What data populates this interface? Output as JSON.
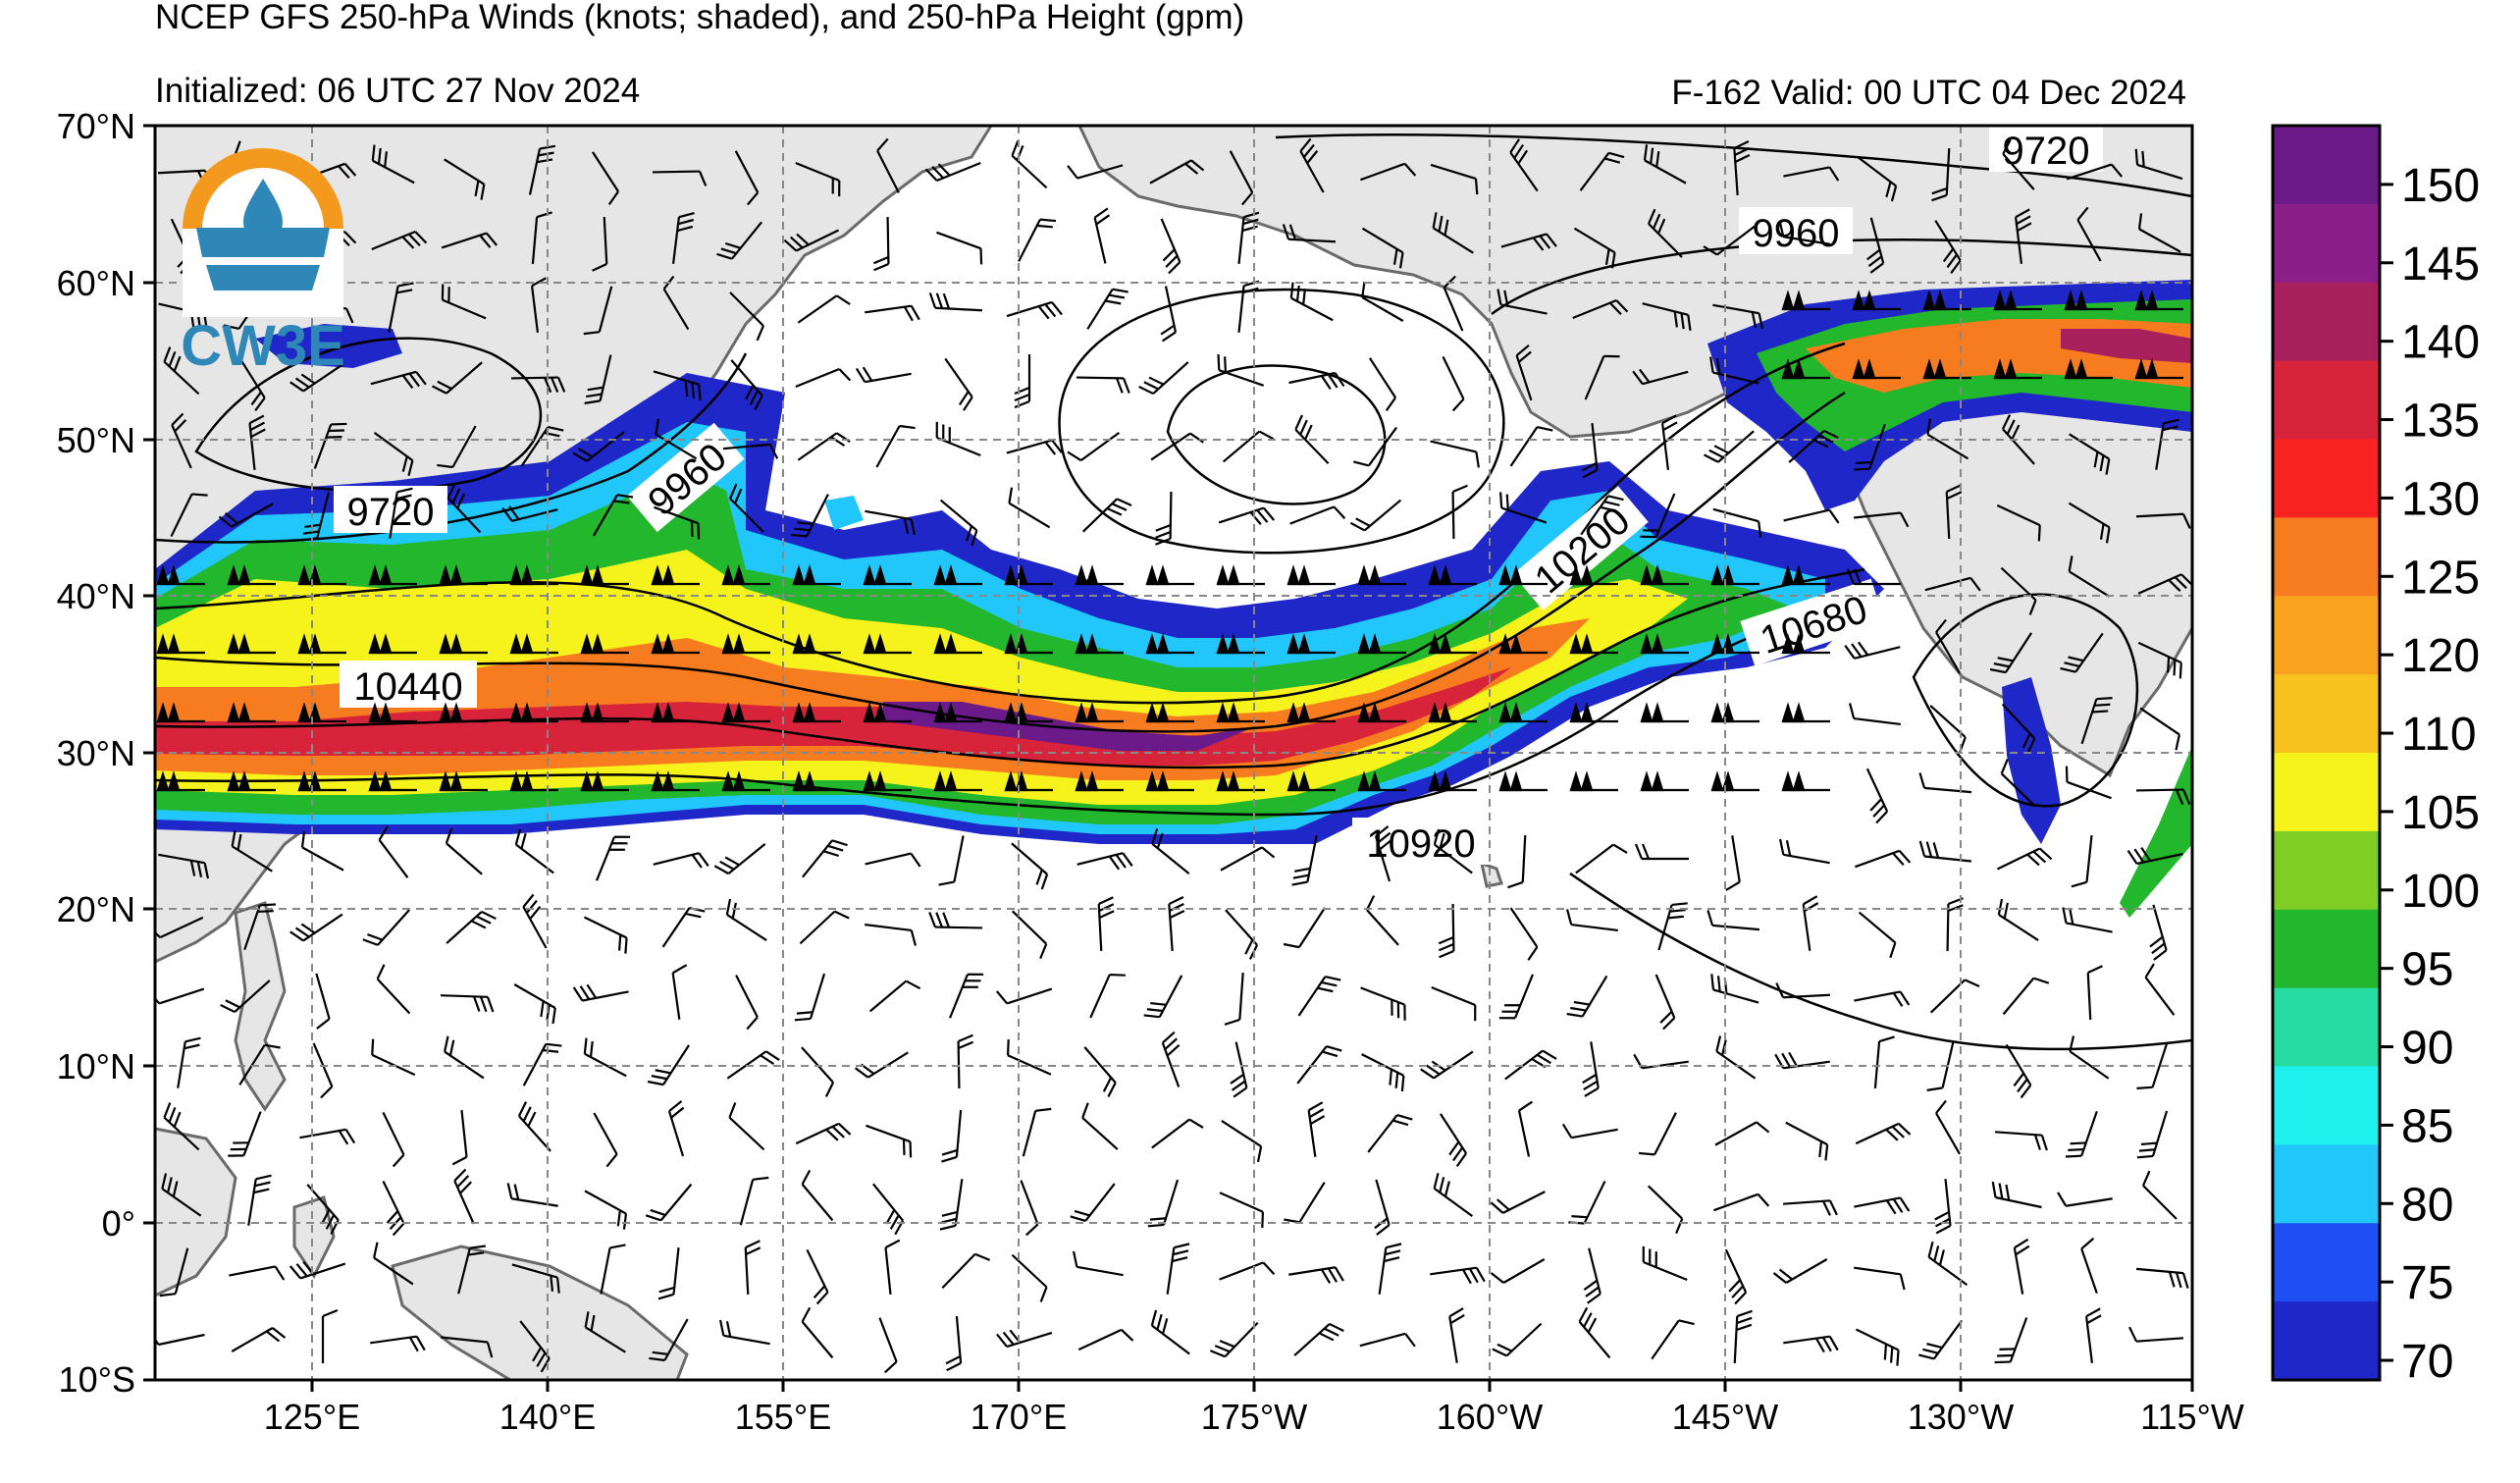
{
  "header": {
    "title": "NCEP GFS 250-hPa Winds (knots; shaded), and 250-hPa Height (gpm)",
    "initialized": "Initialized: 06 UTC 27 Nov 2024",
    "valid": "F-162  Valid: 00 UTC 04 Dec 2024"
  },
  "logo": {
    "text": "CW3E",
    "colors": {
      "orange": "#f39a1e",
      "blue": "#2f87b8"
    }
  },
  "map": {
    "lat_labels": [
      "70°N",
      "60°N",
      "50°N",
      "40°N",
      "30°N",
      "20°N",
      "10°N",
      "0°",
      "10°S"
    ],
    "lon_labels": [
      "125°E",
      "140°E",
      "155°E",
      "170°E",
      "175°W",
      "160°W",
      "145°W",
      "130°W",
      "115°W"
    ],
    "lat_range": [
      -10,
      70
    ],
    "lon_range": [
      110,
      245
    ],
    "gridlines": "dashed",
    "land_color": "#e6e6e6",
    "contour_labels": [
      "9720",
      "9960",
      "9720",
      "9960",
      "10200",
      "10440",
      "10680",
      "10920"
    ]
  },
  "colorbar": {
    "labels": [
      "150",
      "145",
      "140",
      "135",
      "130",
      "125",
      "120",
      "110",
      "105",
      "100",
      "95",
      "90",
      "85",
      "80",
      "75",
      "70"
    ],
    "colors": [
      "#6b1a8a",
      "#8a1f8a",
      "#a8205c",
      "#d8243a",
      "#f82222",
      "#f77b1f",
      "#f9a21e",
      "#f7c21d",
      "#f5f21c",
      "#7ece25",
      "#22b72c",
      "#27dca2",
      "#1ff1ee",
      "#21c6fa",
      "#1f4ef2",
      "#1f27c8"
    ]
  }
}
